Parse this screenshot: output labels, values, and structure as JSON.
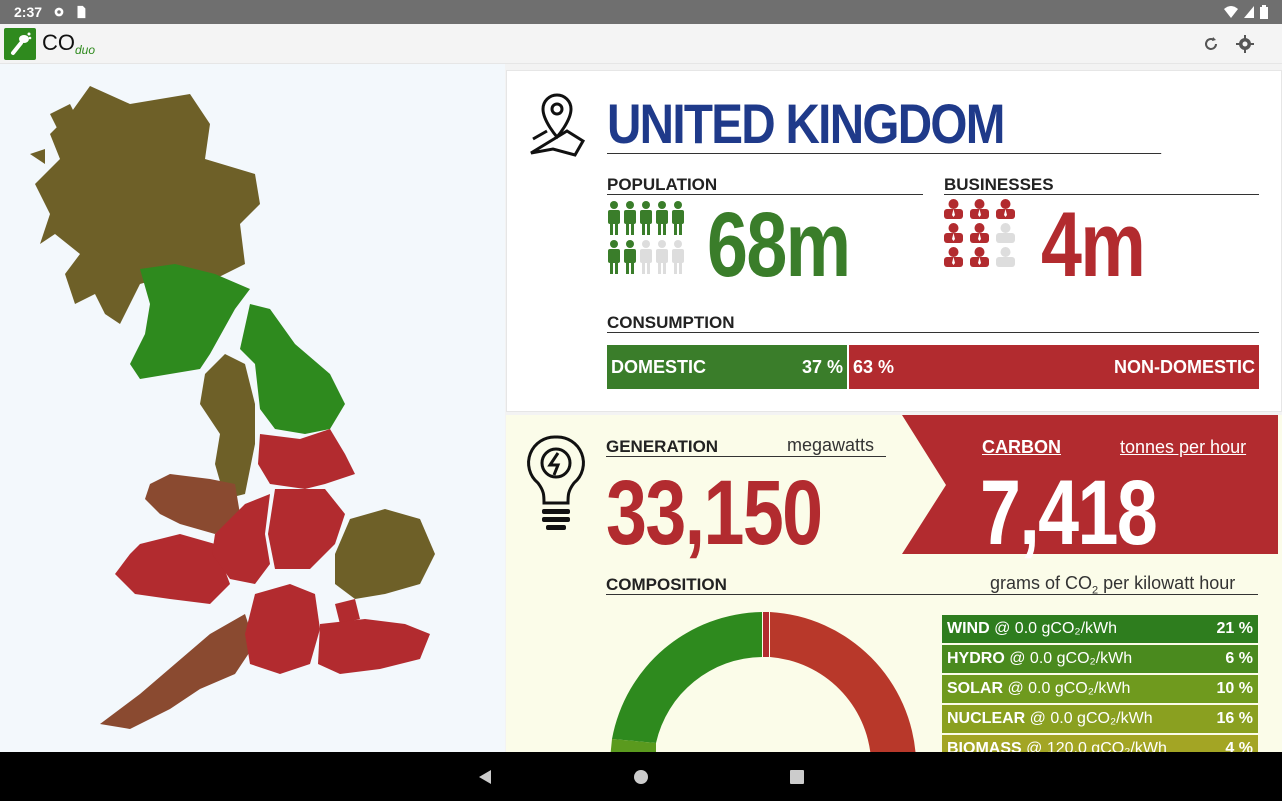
{
  "status": {
    "time": "2:37"
  },
  "app": {
    "name": "CO",
    "name_sub": "duo"
  },
  "country": {
    "name": "UNITED KINGDOM"
  },
  "population": {
    "label": "POPULATION",
    "value": "68m"
  },
  "businesses": {
    "label": "BUSINESSES",
    "value": "4m"
  },
  "consumption": {
    "label": "CONSUMPTION",
    "domestic_label": "DOMESTIC",
    "domestic_pct": "37 %",
    "nondomestic_pct": "63 %",
    "nondomestic_label": "NON-DOMESTIC"
  },
  "generation": {
    "label": "GENERATION",
    "unit": "megawatts",
    "value": "33,150"
  },
  "carbon": {
    "label": "CARBON",
    "unit": "tonnes per hour",
    "value": "7,418"
  },
  "composition": {
    "label": "COMPOSITION",
    "unit_pre": "grams of CO",
    "unit_sub": "2",
    "unit_post": " per kilowatt hour",
    "rows": [
      {
        "name": "WIND",
        "intensity": "@ 0.0 gCO₂/kWh",
        "pct": "21 %",
        "color": "#2e7d1e"
      },
      {
        "name": "HYDRO",
        "intensity": "@ 0.0 gCO₂/kWh",
        "pct": "6 %",
        "color": "#4a8a1e"
      },
      {
        "name": "SOLAR",
        "intensity": "@ 0.0 gCO₂/kWh",
        "pct": "10 %",
        "color": "#6f9a1e"
      },
      {
        "name": "NUCLEAR",
        "intensity": "@ 0.0 gCO₂/kWh",
        "pct": "16 %",
        "color": "#8aa020"
      },
      {
        "name": "BIOMASS",
        "intensity": "@ 120.0 gCO₂/kWh",
        "pct": "4 %",
        "color": "#a3a524"
      }
    ]
  },
  "colors": {
    "green": "#3a7d2a",
    "red": "#b22b2f",
    "olive": "#6e6028",
    "navy": "#1f3a8a"
  }
}
